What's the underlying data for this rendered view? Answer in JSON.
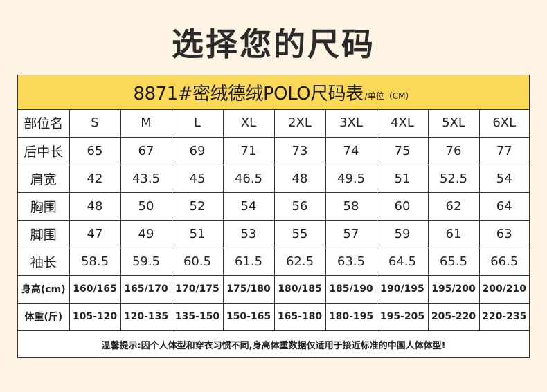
{
  "page_title": "选择您的尺码",
  "banner": {
    "title": "8871#密绒德绒POLO尺码表",
    "unit": "/单位（CM）"
  },
  "header": [
    "部位名",
    "S",
    "M",
    "L",
    "XL",
    "2XL",
    "3XL",
    "4XL",
    "5XL",
    "6XL"
  ],
  "rows": [
    {
      "label": "后中长",
      "values": [
        "65",
        "67",
        "69",
        "71",
        "73",
        "74",
        "75",
        "76",
        "77"
      ]
    },
    {
      "label": "肩宽",
      "values": [
        "42",
        "43.5",
        "45",
        "46.5",
        "48",
        "49.5",
        "51",
        "52.5",
        "54"
      ]
    },
    {
      "label": "胸围",
      "values": [
        "48",
        "50",
        "52",
        "54",
        "56",
        "58",
        "60",
        "62",
        "64"
      ]
    },
    {
      "label": "脚围",
      "values": [
        "47",
        "49",
        "51",
        "53",
        "55",
        "57",
        "59",
        "61",
        "63"
      ]
    },
    {
      "label": "袖长",
      "values": [
        "58.5",
        "59.5",
        "60.5",
        "61.5",
        "62.5",
        "63.5",
        "64.5",
        "65.5",
        "66.5"
      ]
    },
    {
      "label": "身高(cm)",
      "values": [
        "160/165",
        "165/170",
        "170/175",
        "175/180",
        "180/185",
        "185/190",
        "190/195",
        "195/200",
        "200/210"
      ]
    },
    {
      "label": "体重(斤)",
      "values": [
        "105-120",
        "120-135",
        "135-150",
        "150-165",
        "165-180",
        "180-195",
        "195-205",
        "205-220",
        "220-235"
      ]
    }
  ],
  "notice": "温馨提示:因个人体型和穿衣习惯不同,身高体重数据仅适用于接近标准的中国人体体型!"
}
